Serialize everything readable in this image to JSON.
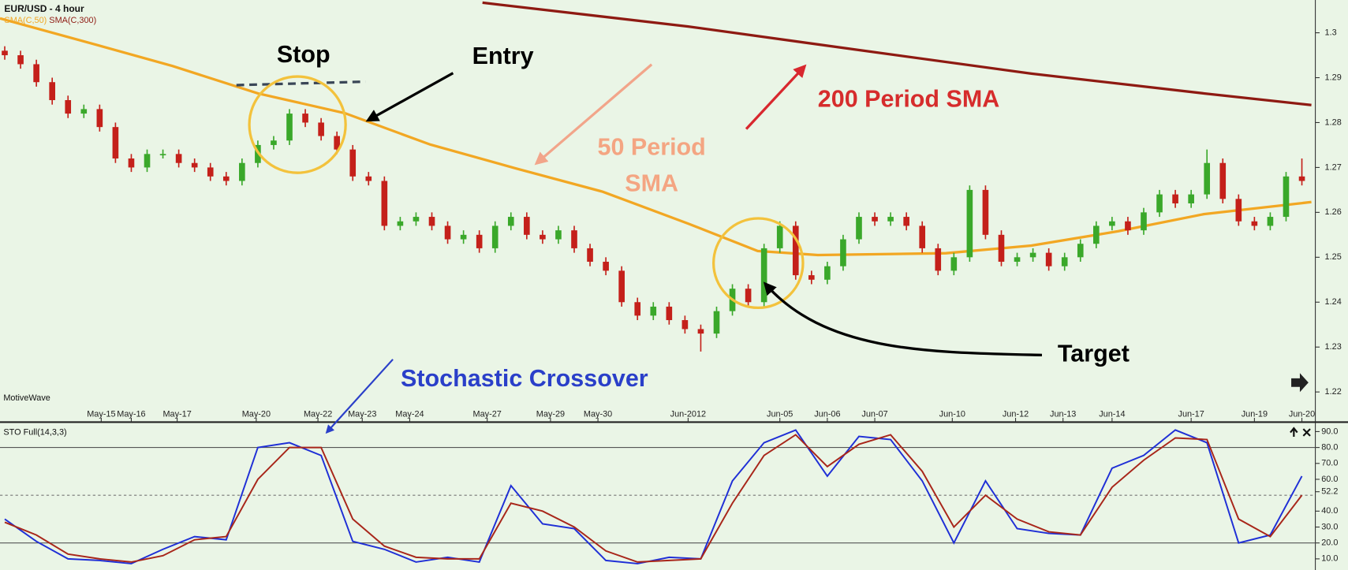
{
  "chart_data": [
    {
      "type": "candlestick",
      "title": "EUR/USD - 4 hour",
      "brand": "MotiveWave",
      "up_color": "#3aa82a",
      "down_color": "#c4201a",
      "open": [
        1.296,
        1.295,
        1.293,
        1.289,
        1.285,
        1.282,
        1.283,
        1.279,
        1.272,
        1.27,
        1.273,
        1.273,
        1.271,
        1.27,
        1.268,
        1.267,
        1.271,
        1.275,
        1.276,
        1.282,
        1.28,
        1.277,
        1.274,
        1.268,
        1.267,
        1.257,
        1.258,
        1.259,
        1.257,
        1.254,
        1.255,
        1.252,
        1.257,
        1.259,
        1.255,
        1.254,
        1.256,
        1.252,
        1.249,
        1.247,
        1.24,
        1.237,
        1.239,
        1.236,
        1.234,
        1.233,
        1.238,
        1.243,
        1.24,
        1.252,
        1.257,
        1.246,
        1.245,
        1.248,
        1.254,
        1.259,
        1.258,
        1.259,
        1.257,
        1.252,
        1.247,
        1.25,
        1.265,
        1.255,
        1.249,
        1.25,
        1.251,
        1.248,
        1.25,
        1.253,
        1.257,
        1.258,
        1.256,
        1.26,
        1.264,
        1.262,
        1.264,
        1.271,
        1.263,
        1.258,
        1.257,
        1.259,
        1.268
      ],
      "high": [
        1.297,
        1.296,
        1.294,
        1.29,
        1.286,
        1.284,
        1.284,
        1.28,
        1.273,
        1.274,
        1.274,
        1.274,
        1.272,
        1.271,
        1.269,
        1.272,
        1.276,
        1.277,
        1.283,
        1.283,
        1.281,
        1.278,
        1.275,
        1.269,
        1.268,
        1.259,
        1.26,
        1.26,
        1.258,
        1.256,
        1.256,
        1.258,
        1.26,
        1.26,
        1.256,
        1.257,
        1.257,
        1.253,
        1.25,
        1.248,
        1.241,
        1.24,
        1.24,
        1.237,
        1.235,
        1.239,
        1.244,
        1.244,
        1.253,
        1.258,
        1.258,
        1.247,
        1.249,
        1.255,
        1.26,
        1.26,
        1.26,
        1.26,
        1.258,
        1.253,
        1.251,
        1.266,
        1.266,
        1.256,
        1.251,
        1.252,
        1.252,
        1.251,
        1.254,
        1.258,
        1.259,
        1.259,
        1.261,
        1.265,
        1.265,
        1.265,
        1.274,
        1.272,
        1.264,
        1.259,
        1.26,
        1.269,
        1.272
      ],
      "low": [
        1.294,
        1.292,
        1.288,
        1.284,
        1.281,
        1.281,
        1.278,
        1.271,
        1.269,
        1.269,
        1.272,
        1.27,
        1.269,
        1.267,
        1.266,
        1.266,
        1.27,
        1.274,
        1.275,
        1.279,
        1.276,
        1.273,
        1.267,
        1.266,
        1.256,
        1.256,
        1.257,
        1.256,
        1.253,
        1.253,
        1.251,
        1.251,
        1.256,
        1.254,
        1.253,
        1.253,
        1.251,
        1.248,
        1.246,
        1.239,
        1.236,
        1.236,
        1.235,
        1.233,
        1.229,
        1.232,
        1.237,
        1.239,
        1.239,
        1.251,
        1.245,
        1.244,
        1.244,
        1.247,
        1.253,
        1.257,
        1.257,
        1.256,
        1.251,
        1.246,
        1.246,
        1.249,
        1.254,
        1.248,
        1.248,
        1.249,
        1.247,
        1.247,
        1.249,
        1.252,
        1.256,
        1.255,
        1.255,
        1.259,
        1.261,
        1.261,
        1.263,
        1.262,
        1.257,
        1.256,
        1.256,
        1.258,
        1.266
      ],
      "close": [
        1.295,
        1.293,
        1.289,
        1.285,
        1.282,
        1.283,
        1.279,
        1.272,
        1.27,
        1.273,
        1.273,
        1.271,
        1.27,
        1.268,
        1.267,
        1.271,
        1.275,
        1.276,
        1.282,
        1.28,
        1.277,
        1.274,
        1.268,
        1.267,
        1.257,
        1.258,
        1.259,
        1.257,
        1.254,
        1.255,
        1.252,
        1.257,
        1.259,
        1.255,
        1.254,
        1.256,
        1.252,
        1.249,
        1.247,
        1.24,
        1.237,
        1.239,
        1.236,
        1.234,
        1.233,
        1.238,
        1.243,
        1.24,
        1.252,
        1.257,
        1.246,
        1.245,
        1.248,
        1.254,
        1.259,
        1.258,
        1.259,
        1.257,
        1.252,
        1.247,
        1.25,
        1.265,
        1.255,
        1.249,
        1.25,
        1.251,
        1.248,
        1.25,
        1.253,
        1.257,
        1.258,
        1.256,
        1.26,
        1.264,
        1.262,
        1.264,
        1.271,
        1.263,
        1.258,
        1.257,
        1.259,
        1.268,
        1.267
      ],
      "series": [
        {
          "name": "SMA(C,50)",
          "color": "#f2a723",
          "x": [
            -0.3,
            5.2,
            10.6,
            16.0,
            21.5,
            26.9,
            32.3,
            37.8,
            43.2,
            47.6,
            51.4,
            59.5,
            64.9,
            70.4,
            75.8,
            82.6
          ],
          "values": [
            1.3032,
            1.2979,
            1.2926,
            1.2865,
            1.2821,
            1.2751,
            1.2698,
            1.2646,
            1.2575,
            1.2514,
            1.2505,
            1.2509,
            1.2526,
            1.2558,
            1.2596,
            1.2623
          ]
        },
        {
          "name": "SMA(C,300)",
          "color": "#8e1a12",
          "x": [
            30.2,
            43.2,
            54.1,
            64.9,
            75.8,
            82.6
          ],
          "values": [
            1.3067,
            1.3014,
            1.2961,
            1.2909,
            1.2865,
            1.2839
          ]
        }
      ],
      "xlim": [
        -0.3,
        82.85
      ],
      "ylim": [
        1.2173,
        1.3073
      ],
      "yticks": [
        1.22,
        1.23,
        1.24,
        1.25,
        1.26,
        1.27,
        1.28,
        1.29,
        1.3
      ],
      "xticks": [
        {
          "value": 6.1,
          "label": "May-15"
        },
        {
          "value": 8.0,
          "label": "May-16"
        },
        {
          "value": 10.9,
          "label": "May-17"
        },
        {
          "value": 15.9,
          "label": "May-20"
        },
        {
          "value": 19.8,
          "label": "May-22"
        },
        {
          "value": 22.6,
          "label": "May-23"
        },
        {
          "value": 25.6,
          "label": "May-24"
        },
        {
          "value": 30.5,
          "label": "May-27"
        },
        {
          "value": 34.5,
          "label": "May-29"
        },
        {
          "value": 37.5,
          "label": "May-30"
        },
        {
          "value": 43.2,
          "label": "Jun-2012"
        },
        {
          "value": 49.0,
          "label": "Jun-05"
        },
        {
          "value": 52.0,
          "label": "Jun-06"
        },
        {
          "value": 55.0,
          "label": "Jun-07"
        },
        {
          "value": 59.9,
          "label": "Jun-10"
        },
        {
          "value": 63.9,
          "label": "Jun-12"
        },
        {
          "value": 66.9,
          "label": "Jun-13"
        },
        {
          "value": 70.0,
          "label": "Jun-14"
        },
        {
          "value": 75.0,
          "label": "Jun-17"
        },
        {
          "value": 79.0,
          "label": "Jun-19"
        },
        {
          "value": 82.0,
          "label": "Jun-20"
        }
      ],
      "annotations": [
        "Stop",
        "Entry",
        "50 Period",
        "SMA",
        "200 Period SMA",
        "Target",
        "Stochastic Crossover"
      ]
    },
    {
      "type": "line",
      "title": "STO Full(14,3,3)",
      "x": [
        0,
        2,
        4,
        6,
        8,
        10,
        12,
        14,
        16,
        18,
        20,
        22,
        24,
        26,
        28,
        30,
        32,
        34,
        36,
        38,
        40,
        42,
        44,
        46,
        48,
        50,
        52,
        54,
        56,
        58,
        60,
        62,
        64,
        66,
        68,
        70,
        72,
        74,
        76,
        78,
        80,
        82
      ],
      "series": [
        {
          "color": "#1f2fd6",
          "values": [
            35,
            21,
            10,
            9,
            7,
            16,
            24,
            22,
            80,
            83,
            75,
            21,
            16,
            8,
            11,
            8,
            56,
            32,
            29,
            9,
            7,
            11,
            10,
            59,
            83,
            91,
            62,
            87,
            85,
            59,
            20,
            59,
            29,
            26,
            25,
            67,
            75,
            91,
            83,
            20,
            25,
            62
          ]
        },
        {
          "color": "#a8261a",
          "values": [
            33,
            25,
            13,
            10,
            8,
            12,
            22,
            24,
            60,
            80,
            80,
            35,
            18,
            11,
            10,
            10,
            45,
            40,
            30,
            15,
            8,
            9,
            10,
            45,
            75,
            88,
            68,
            82,
            88,
            65,
            30,
            50,
            35,
            27,
            25,
            55,
            72,
            86,
            85,
            35,
            24,
            50
          ]
        }
      ],
      "xlim": [
        -0.3,
        82.85
      ],
      "ylim": [
        3,
        95.4
      ],
      "levels": [
        80,
        20
      ],
      "midline": 50,
      "yticks": [
        {
          "value": 10,
          "label": "10.0"
        },
        {
          "value": 20,
          "label": "20.0"
        },
        {
          "value": 30,
          "label": "30.0"
        },
        {
          "value": 40,
          "label": "40.0"
        },
        {
          "value": 52.2,
          "label": "52.2"
        },
        {
          "value": 60,
          "label": "60.0"
        },
        {
          "value": 70,
          "label": "70.0"
        },
        {
          "value": 80,
          "label": "80.0"
        },
        {
          "value": 90,
          "label": "90.0"
        }
      ]
    }
  ]
}
